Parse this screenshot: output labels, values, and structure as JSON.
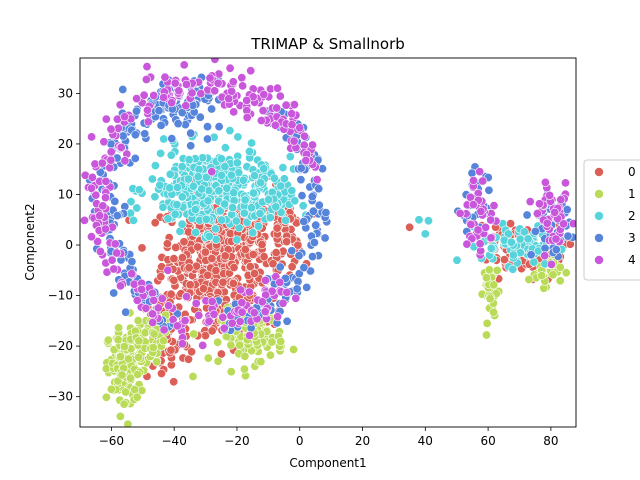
{
  "chart_data": {
    "type": "scatter",
    "title": "TRIMAP & Smallnorb",
    "xlabel": "Component1",
    "ylabel": "Component2",
    "xlim": [
      -70,
      88
    ],
    "ylim": [
      -36,
      37
    ],
    "xticks": [
      -60,
      -40,
      -20,
      0,
      20,
      40,
      60,
      80
    ],
    "yticks": [
      -30,
      -20,
      -10,
      0,
      10,
      20,
      30
    ],
    "grid": false,
    "legend_position": "right",
    "series": [
      {
        "name": "0",
        "color": "#db5f57",
        "clusters": [
          {
            "cx": -30,
            "cy": -2,
            "sx": 7,
            "sy": 6,
            "n": 300
          },
          {
            "cx": -22,
            "cy": 0,
            "sx": 5,
            "sy": 5,
            "n": 120
          },
          {
            "cx": -12,
            "cy": -3,
            "sx": 4,
            "sy": 7,
            "n": 90
          },
          {
            "cx": -5,
            "cy": 3,
            "sx": 3,
            "sy": 4,
            "n": 60
          },
          {
            "cx": -43,
            "cy": -18,
            "sx": 4,
            "sy": 5,
            "n": 80
          },
          {
            "cx": -24,
            "cy": -13,
            "sx": 5,
            "sy": 3,
            "n": 60
          },
          {
            "cx": 72,
            "cy": -1,
            "sx": 6,
            "sy": 3,
            "n": 70
          },
          {
            "cx": 63,
            "cy": 0,
            "sx": 3,
            "sy": 2,
            "n": 25
          }
        ],
        "extra_points": [
          [
            35,
            3.5
          ]
        ]
      },
      {
        "name": "1",
        "color": "#b9db57",
        "clusters": [
          {
            "cx": -56,
            "cy": -25,
            "sx": 2.5,
            "sy": 4,
            "n": 120
          },
          {
            "cx": -52,
            "cy": -20,
            "sx": 3,
            "sy": 3,
            "n": 60
          },
          {
            "cx": -15,
            "cy": -18,
            "sx": 5,
            "sy": 2.5,
            "n": 110
          },
          {
            "cx": -45,
            "cy": -17,
            "sx": 2,
            "sy": 2,
            "n": 25
          },
          {
            "cx": 61,
            "cy": -9,
            "sx": 1.2,
            "sy": 3,
            "n": 40
          },
          {
            "cx": 78,
            "cy": -5,
            "sx": 2.5,
            "sy": 1.5,
            "n": 30
          }
        ],
        "extra_points": [
          [
            -34,
            -26
          ],
          [
            -26,
            -23
          ]
        ]
      },
      {
        "name": "2",
        "color": "#57d3db",
        "clusters": [
          {
            "cx": -30,
            "cy": 11,
            "sx": 9,
            "sy": 4,
            "n": 330
          },
          {
            "cx": -12,
            "cy": 9,
            "sx": 5,
            "sy": 3,
            "n": 80
          },
          {
            "cx": 70,
            "cy": 0,
            "sx": 6,
            "sy": 2,
            "n": 70
          }
        ],
        "extra_points": [
          [
            38,
            5
          ],
          [
            41,
            4.8
          ],
          [
            40,
            2.2
          ],
          [
            -16,
            18.5
          ],
          [
            -3,
            17.5
          ]
        ]
      },
      {
        "name": "3",
        "color": "#5784db",
        "clusters": [
          {
            "ring": true,
            "cx": -28,
            "cy": 8,
            "rx": 34,
            "ry": 23,
            "th0": 90,
            "th1": 250,
            "spread": 2.2,
            "n": 160
          },
          {
            "ring": true,
            "cx": -28,
            "cy": 8,
            "rx": 34,
            "ry": 23,
            "th0": -85,
            "th1": 55,
            "spread": 2.2,
            "n": 130
          },
          {
            "cx": -35,
            "cy": 27,
            "sx": 6,
            "sy": 3,
            "n": 40
          },
          {
            "cx": 56,
            "cy": 8,
            "sx": 2.5,
            "sy": 3,
            "n": 30
          },
          {
            "cx": 80,
            "cy": 4,
            "sx": 3,
            "sy": 3,
            "n": 40
          }
        ],
        "extra_points": []
      },
      {
        "name": "4",
        "color": "#c957db",
        "clusters": [
          {
            "ring": true,
            "cx": -28,
            "cy": 8,
            "rx": 36,
            "ry": 24,
            "th0": 120,
            "th1": 260,
            "spread": 2.6,
            "n": 120
          },
          {
            "ring": true,
            "cx": -28,
            "cy": 8,
            "rx": 33,
            "ry": 23,
            "th0": 20,
            "th1": 95,
            "spread": 2.4,
            "n": 90
          },
          {
            "ring": true,
            "cx": -28,
            "cy": 8,
            "rx": 32,
            "ry": 22,
            "th0": -100,
            "th1": -40,
            "spread": 2.2,
            "n": 50
          },
          {
            "cx": -38,
            "cy": 31,
            "sx": 3,
            "sy": 1.8,
            "n": 30
          },
          {
            "cx": 57,
            "cy": 6,
            "sx": 3,
            "sy": 4,
            "n": 40
          },
          {
            "cx": 81,
            "cy": 5,
            "sx": 2.5,
            "sy": 3,
            "n": 45
          }
        ],
        "extra_points": [
          [
            -26,
            32
          ],
          [
            -42,
            -5
          ],
          [
            -28,
            14.5
          ]
        ]
      }
    ]
  }
}
